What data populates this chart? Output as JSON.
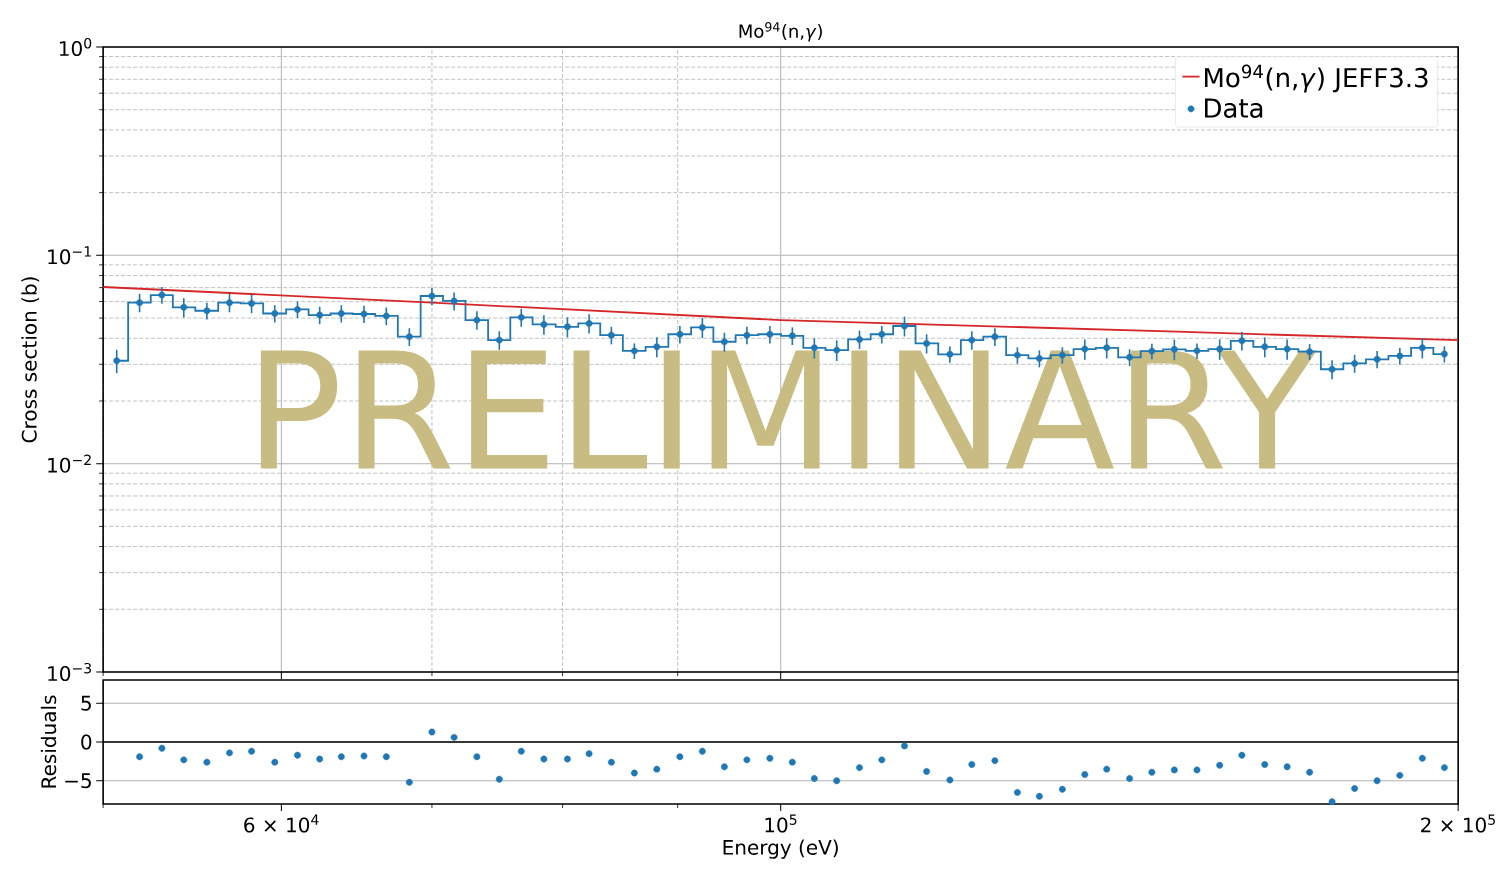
{
  "chart_data": [
    {
      "type": "line",
      "title": "Mo$^{94}$(n,*γ*)",
      "ylabel": "Cross section (b)",
      "log": "xy",
      "grid": true,
      "legend": "top right",
      "tick_labels": "y",
      "annotations": [
        "PRELIMINARY"
      ],
      "xlim": [
        50000,
        200000
      ],
      "ylim": [
        0.001,
        1
      ],
      "xticks": [
        60000,
        100000,
        200000
      ],
      "yticks": [
        {
          "value": 0.001,
          "label": "10$^{−3}$"
        },
        {
          "value": 0.01,
          "label": "10$^{−2}$"
        },
        {
          "value": 0.1,
          "label": "10$^{−1}$"
        },
        {
          "value": 1,
          "label": "10$^{0}$"
        }
      ],
      "x": [
        50700,
        51900,
        53100,
        54300,
        55600,
        56900,
        58200,
        59600,
        61000,
        62400,
        63800,
        65300,
        66800,
        68400,
        70000,
        71600,
        73300,
        75000,
        76700,
        78500,
        80400,
        82200,
        84100,
        86100,
        88100,
        90200,
        92300,
        94400,
        96600,
        98900,
        101200,
        103500,
        105900,
        108400,
        110900,
        113500,
        116100,
        118900,
        121600,
        124500,
        127400,
        130300,
        133400,
        136500,
        139600,
        142900,
        146200,
        149600,
        153100,
        156700,
        160300,
        164100,
        167900,
        171800,
        175800,
        179900,
        184100,
        188400,
        192800,
        197200
      ],
      "series": [
        {
          "type": "step",
          "color": "#1f77b4",
          "values": [
            0.0312,
            0.0593,
            0.0645,
            0.0563,
            0.0542,
            0.0593,
            0.0588,
            0.0526,
            0.055,
            0.0517,
            0.0526,
            0.0523,
            0.0512,
            0.0407,
            0.0638,
            0.0604,
            0.0489,
            0.0392,
            0.0504,
            0.0466,
            0.0454,
            0.0471,
            0.0414,
            0.0348,
            0.0364,
            0.0418,
            0.0451,
            0.0385,
            0.0414,
            0.0418,
            0.0411,
            0.036,
            0.0351,
            0.0395,
            0.0418,
            0.0458,
            0.0378,
            0.0335,
            0.0392,
            0.0407,
            0.0332,
            0.032,
            0.0332,
            0.0355,
            0.036,
            0.0324,
            0.0347,
            0.0354,
            0.0348,
            0.0355,
            0.0389,
            0.0364,
            0.0355,
            0.0345,
            0.0284,
            0.0303,
            0.0317,
            0.0329,
            0.036,
            0.0336
          ]
        },
        {
          "type": "line",
          "name": "Mo$^{94}$(n,*γ*) JEFF3.3",
          "color": "#d62728",
          "x": [
            50000,
            70000,
            100000,
            150000,
            200000
          ],
          "values": [
            0.0705,
            0.0593,
            0.0489,
            0.043,
            0.0392
          ]
        },
        {
          "type": "scatter",
          "name": "Data",
          "color": "#1f77b4",
          "marker": "circle",
          "values": [
            0.0312,
            0.0593,
            0.0645,
            0.0563,
            0.0542,
            0.0593,
            0.0588,
            0.0526,
            0.055,
            0.0517,
            0.0526,
            0.0523,
            0.0512,
            0.0407,
            0.0638,
            0.0604,
            0.0489,
            0.0392,
            0.0504,
            0.0466,
            0.0454,
            0.0471,
            0.0414,
            0.0348,
            0.0364,
            0.0418,
            0.0451,
            0.0385,
            0.0414,
            0.0418,
            0.0411,
            0.036,
            0.0351,
            0.0395,
            0.0418,
            0.0458,
            0.0378,
            0.0335,
            0.0392,
            0.0407,
            0.0332,
            0.032,
            0.0332,
            0.0355,
            0.036,
            0.0324,
            0.0347,
            0.0354,
            0.0348,
            0.0355,
            0.0389,
            0.0364,
            0.0355,
            0.0345,
            0.0284,
            0.0303,
            0.0317,
            0.0329,
            0.036,
            0.0336
          ],
          "errors": [
            0.004,
            0.006,
            0.006,
            0.006,
            0.005,
            0.006,
            0.006,
            0.005,
            0.005,
            0.005,
            0.005,
            0.005,
            0.005,
            0.004,
            0.006,
            0.006,
            0.005,
            0.004,
            0.005,
            0.005,
            0.005,
            0.005,
            0.004,
            0.003,
            0.004,
            0.004,
            0.005,
            0.004,
            0.004,
            0.004,
            0.004,
            0.004,
            0.004,
            0.004,
            0.004,
            0.005,
            0.004,
            0.003,
            0.004,
            0.004,
            0.003,
            0.003,
            0.003,
            0.004,
            0.004,
            0.003,
            0.003,
            0.004,
            0.003,
            0.004,
            0.004,
            0.004,
            0.004,
            0.003,
            0.003,
            0.003,
            0.003,
            0.003,
            0.004,
            0.003
          ]
        }
      ]
    },
    {
      "type": "scatter",
      "xlabel": "Energy (eV)",
      "ylabel": "Residuals",
      "log": "x",
      "grid": "y",
      "marker": "circle",
      "color": "#1f77b4",
      "xlim": [
        50000,
        200000
      ],
      "ylim": [
        -8,
        8
      ],
      "xticks": [
        {
          "value": 60000,
          "label": "6 × 10$^{4}$"
        },
        {
          "value": 100000,
          "label": "10$^{5}$"
        },
        {
          "value": 200000,
          "label": "2 × 10$^{5}$"
        }
      ],
      "yticks": [
        {
          "value": -5,
          "label": "−5"
        },
        0,
        5
      ],
      "ref_lines": [
        {
          "axis": "y",
          "value": 0,
          "color": "#000000"
        }
      ],
      "x": [
        51900,
        53100,
        54300,
        55600,
        56900,
        58200,
        59600,
        61000,
        62400,
        63800,
        65300,
        66800,
        68400,
        70000,
        71600,
        73300,
        75000,
        76700,
        78500,
        80400,
        82200,
        84100,
        86100,
        88100,
        90200,
        92300,
        94400,
        96600,
        98900,
        101200,
        103500,
        105900,
        108400,
        110900,
        113500,
        116100,
        118900,
        121600,
        124500,
        127400,
        130300,
        133400,
        136500,
        139600,
        142900,
        146200,
        149600,
        153100,
        156700,
        160300,
        164100,
        167900,
        171800,
        175800,
        179900,
        184100,
        188400,
        192800,
        197200
      ],
      "values": [
        -1.9,
        -0.8,
        -2.3,
        -2.6,
        -1.4,
        -1.2,
        -2.6,
        -1.7,
        -2.2,
        -1.9,
        -1.8,
        -1.9,
        -5.2,
        1.3,
        0.6,
        -1.9,
        -4.8,
        -1.2,
        -2.2,
        -2.2,
        -1.5,
        -2.6,
        -4.0,
        -3.5,
        -1.9,
        -1.2,
        -3.2,
        -2.3,
        -2.1,
        -2.6,
        -4.7,
        -5.0,
        -3.3,
        -2.3,
        -0.5,
        -3.8,
        -4.9,
        -2.9,
        -2.4,
        -6.5,
        -7.0,
        -6.1,
        -4.2,
        -3.5,
        -4.7,
        -3.9,
        -3.6,
        -3.6,
        -3.0,
        -1.7,
        -2.9,
        -3.2,
        -3.9,
        -7.7,
        -6.0,
        -5.0,
        -4.3,
        -2.1,
        -3.3
      ]
    }
  ]
}
